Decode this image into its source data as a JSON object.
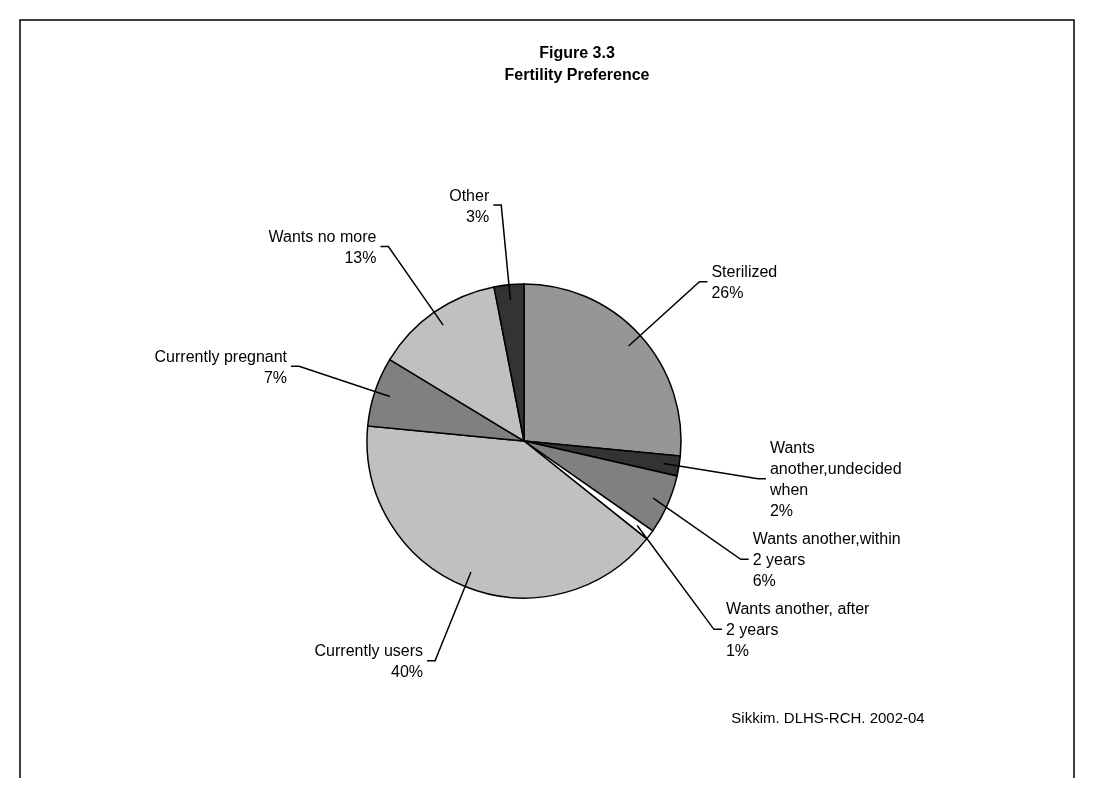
{
  "chart_data": {
    "type": "pie",
    "title": "Figure 3.3",
    "subtitle": "Fertility Preference",
    "categories": [
      "Sterilized",
      "Wants another,undecided when",
      "Wants another,within 2 years",
      "Wants another, after 2 years",
      "Currently users",
      "Currently pregnant",
      "Wants no more",
      "Other"
    ],
    "values": [
      26,
      2,
      6,
      1,
      40,
      7,
      13,
      3
    ],
    "value_labels": [
      "26%",
      "2%",
      "6%",
      "1%",
      "40%",
      "7%",
      "13%",
      "3%"
    ],
    "colors": [
      "#969696",
      "#333333",
      "#808080",
      "#ffffff",
      "#c0c0c0",
      "#808080",
      "#c0c0c0",
      "#333333"
    ],
    "annotations": [
      "Sikkim. DLHS-RCH. 2002-04"
    ]
  }
}
